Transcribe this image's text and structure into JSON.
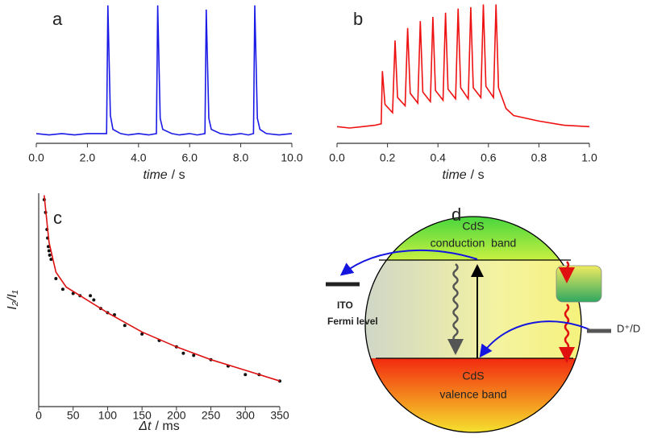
{
  "chart_data": [
    {
      "type": "line",
      "label": "a",
      "xlabel": "time",
      "xlabel_unit": "/ s",
      "xlim": [
        0,
        10
      ],
      "ylim": [
        0,
        1
      ],
      "xticks": [
        {
          "value": 0,
          "label": "0.0"
        },
        {
          "value": 2,
          "label": "2.0"
        },
        {
          "value": 4,
          "label": "4.0"
        },
        {
          "value": 6,
          "label": "6.0"
        },
        {
          "value": 8,
          "label": "8.0"
        },
        {
          "value": 10,
          "label": "10.0"
        }
      ],
      "series": [
        {
          "color": "#1a1ae6",
          "x": [
            0,
            0.5,
            1,
            1.5,
            2,
            2.5,
            2.75,
            2.8,
            2.9,
            3.0,
            3.3,
            3.6,
            4.0,
            4.4,
            4.7,
            4.75,
            4.85,
            4.95,
            5.3,
            5.6,
            6.0,
            6.3,
            6.6,
            6.65,
            6.75,
            6.85,
            7.2,
            7.6,
            8.0,
            8.3,
            8.5,
            8.55,
            8.65,
            8.75,
            9.0,
            9.5,
            10
          ],
          "values": [
            0.07,
            0.06,
            0.07,
            0.06,
            0.07,
            0.07,
            0.07,
            0.99,
            0.2,
            0.1,
            0.07,
            0.06,
            0.07,
            0.06,
            0.07,
            0.99,
            0.18,
            0.1,
            0.07,
            0.06,
            0.07,
            0.06,
            0.07,
            0.96,
            0.18,
            0.1,
            0.07,
            0.06,
            0.07,
            0.06,
            0.07,
            0.99,
            0.18,
            0.1,
            0.07,
            0.06,
            0.07
          ]
        }
      ]
    },
    {
      "type": "line",
      "label": "b",
      "xlabel": "time",
      "xlabel_unit": "/ s",
      "xlim": [
        0,
        1
      ],
      "ylim": [
        0,
        1.02
      ],
      "xticks": [
        {
          "value": 0,
          "label": "0.0"
        },
        {
          "value": 0.2,
          "label": "0.2"
        },
        {
          "value": 0.4,
          "label": "0.4"
        },
        {
          "value": 0.6,
          "label": "0.6"
        },
        {
          "value": 0.8,
          "label": "0.8"
        },
        {
          "value": 1,
          "label": "1.0"
        }
      ],
      "series": [
        {
          "color": "#ee1111",
          "x": [
            0,
            0.05,
            0.1,
            0.15,
            0.175,
            0.18,
            0.19,
            0.22,
            0.23,
            0.24,
            0.27,
            0.28,
            0.29,
            0.32,
            0.33,
            0.34,
            0.37,
            0.38,
            0.39,
            0.42,
            0.43,
            0.44,
            0.47,
            0.48,
            0.49,
            0.52,
            0.53,
            0.54,
            0.57,
            0.58,
            0.59,
            0.62,
            0.63,
            0.64,
            0.67,
            0.7,
            0.8,
            0.9,
            1.0
          ],
          "values": [
            0.12,
            0.11,
            0.12,
            0.13,
            0.14,
            0.52,
            0.28,
            0.22,
            0.74,
            0.33,
            0.27,
            0.83,
            0.36,
            0.29,
            0.88,
            0.37,
            0.3,
            0.91,
            0.38,
            0.31,
            0.94,
            0.39,
            0.32,
            0.97,
            0.4,
            0.32,
            0.98,
            0.4,
            0.33,
            1.0,
            0.41,
            0.33,
            1.0,
            0.4,
            0.25,
            0.2,
            0.16,
            0.13,
            0.12
          ]
        }
      ]
    },
    {
      "type": "scatter",
      "label": "c",
      "xlabel": "Δt",
      "xlabel_unit": "/ ms",
      "ylabel": "I₂/I₁",
      "xlim": [
        0,
        350
      ],
      "ylim": [
        0,
        1
      ],
      "xticks": [
        0,
        50,
        100,
        150,
        200,
        250,
        300,
        350
      ],
      "series": [
        {
          "type": "scatter",
          "color": "#111111",
          "x": [
            8,
            10,
            12,
            13,
            14,
            15,
            16,
            18,
            25,
            35,
            50,
            60,
            75,
            80,
            90,
            100,
            110,
            125,
            150,
            175,
            200,
            210,
            225,
            250,
            275,
            300,
            320,
            350
          ],
          "values": [
            0.97,
            0.91,
            0.83,
            0.79,
            0.75,
            0.73,
            0.71,
            0.69,
            0.6,
            0.55,
            0.53,
            0.52,
            0.52,
            0.5,
            0.46,
            0.44,
            0.43,
            0.38,
            0.34,
            0.31,
            0.28,
            0.25,
            0.24,
            0.22,
            0.19,
            0.15,
            0.15,
            0.12
          ]
        },
        {
          "type": "line",
          "color": "#dd1111",
          "x": [
            8,
            15,
            25,
            40,
            60,
            100,
            150,
            200,
            250,
            300,
            350
          ],
          "values": [
            0.99,
            0.77,
            0.63,
            0.56,
            0.52,
            0.44,
            0.35,
            0.28,
            0.22,
            0.17,
            0.12
          ]
        }
      ]
    }
  ],
  "diagram": {
    "label": "d",
    "conduction": {
      "title": "CdS",
      "text": "conduction  band"
    },
    "valence": {
      "title": "CdS",
      "text": "valence band"
    },
    "ito": "ITO",
    "fermi": "Fermi level",
    "donor": "D⁺/D"
  }
}
